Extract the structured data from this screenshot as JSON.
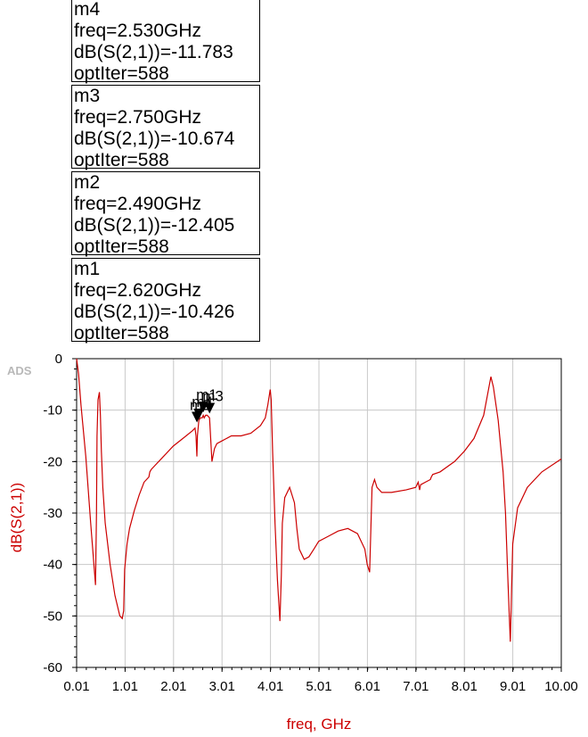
{
  "markers": [
    {
      "name": "m4",
      "freq": "freq=2.530GHz",
      "value": "dB(S(2,1))=-11.783",
      "iter": "optIter=588"
    },
    {
      "name": "m3",
      "freq": "freq=2.750GHz",
      "value": "dB(S(2,1))=-10.674",
      "iter": "optIter=588"
    },
    {
      "name": "m2",
      "freq": "freq=2.490GHz",
      "value": "dB(S(2,1))=-12.405",
      "iter": "optIter=588"
    },
    {
      "name": "m1",
      "freq": "freq=2.620GHz",
      "value": "dB(S(2,1))=-10.426",
      "iter": "optIter=588"
    }
  ],
  "chart_data": {
    "type": "line",
    "watermark": "ADS",
    "xlabel": "freq, GHz",
    "ylabel": "dB(S(2,1))",
    "xlim": [
      0.01,
      10.0
    ],
    "ylim": [
      -60,
      0
    ],
    "xticks": [
      "0.01",
      "1.01",
      "2.01",
      "3.01",
      "4.01",
      "5.01",
      "6.01",
      "7.01",
      "8.01",
      "9.01",
      "10.00"
    ],
    "yticks": [
      "0",
      "-10",
      "-20",
      "-30",
      "-40",
      "-50",
      "-60"
    ],
    "grid": true,
    "line_color": "#cc0000",
    "series": [
      {
        "x": [
          0.01,
          0.05,
          0.1,
          0.2,
          0.3,
          0.35,
          0.4,
          0.42,
          0.43,
          0.45,
          0.48,
          0.5,
          0.52,
          0.55,
          0.6,
          0.7,
          0.8,
          0.9,
          0.95,
          0.98,
          1.0,
          1.05,
          1.1,
          1.2,
          1.3,
          1.4,
          1.5,
          1.52,
          1.55,
          1.6,
          1.8,
          2.0,
          2.2,
          2.4,
          2.45,
          2.47,
          2.49,
          2.5,
          2.53,
          2.56,
          2.6,
          2.62,
          2.64,
          2.67,
          2.7,
          2.75,
          2.8,
          2.85,
          2.9,
          3.0,
          3.2,
          3.4,
          3.6,
          3.8,
          3.9,
          3.95,
          4.0,
          4.02,
          4.05,
          4.1,
          4.15,
          4.2,
          4.23,
          4.25,
          4.3,
          4.4,
          4.5,
          4.55,
          4.6,
          4.7,
          4.8,
          4.9,
          5.0,
          5.2,
          5.4,
          5.6,
          5.8,
          5.95,
          6.0,
          6.05,
          6.1,
          6.15,
          6.2,
          6.3,
          6.5,
          6.8,
          7.0,
          7.05,
          7.08,
          7.1,
          7.2,
          7.3,
          7.32,
          7.35,
          7.5,
          7.8,
          8.0,
          8.2,
          8.4,
          8.5,
          8.55,
          8.6,
          8.7,
          8.8,
          8.85,
          8.9,
          8.95,
          9.0,
          9.1,
          9.3,
          9.6,
          10.0
        ],
        "y": [
          0.0,
          -3.0,
          -9.0,
          -19.0,
          -32.0,
          -38.0,
          -44.0,
          -30.0,
          -15.0,
          -8.0,
          -6.5,
          -11.0,
          -18.0,
          -25.0,
          -32.0,
          -40.0,
          -46.0,
          -50.0,
          -50.5,
          -49.0,
          -41.0,
          -36.0,
          -33.0,
          -29.5,
          -26.5,
          -24.0,
          -23.0,
          -22.0,
          -21.5,
          -21.0,
          -19.0,
          -17.0,
          -15.5,
          -14.0,
          -13.5,
          -15.0,
          -19.0,
          -15.0,
          -12.0,
          -11.5,
          -11.5,
          -11.0,
          -11.5,
          -11.0,
          -11.0,
          -11.5,
          -20.0,
          -17.5,
          -16.5,
          -16.0,
          -15.0,
          -15.0,
          -14.5,
          -13.0,
          -11.5,
          -9.0,
          -6.0,
          -8.0,
          -18.0,
          -32.0,
          -43.0,
          -51.0,
          -42.0,
          -32.0,
          -27.0,
          -25.0,
          -28.0,
          -33.0,
          -37.0,
          -39.0,
          -38.5,
          -37.0,
          -35.5,
          -34.5,
          -33.5,
          -33.0,
          -34.0,
          -37.0,
          -40.0,
          -41.5,
          -25.0,
          -23.5,
          -25.0,
          -26.0,
          -26.0,
          -25.5,
          -25.0,
          -24.0,
          -25.5,
          -24.5,
          -24.0,
          -23.5,
          -23.0,
          -22.5,
          -22.0,
          -20.0,
          -18.0,
          -15.5,
          -11.0,
          -6.0,
          -3.5,
          -5.5,
          -12.0,
          -22.0,
          -30.0,
          -43.0,
          -55.0,
          -36.0,
          -29.0,
          -25.0,
          -22.0,
          -19.5
        ]
      }
    ],
    "marker_points": [
      {
        "label": "m1",
        "x": 2.62,
        "y": -10.426
      },
      {
        "label": "m2",
        "x": 2.49,
        "y": -12.405
      },
      {
        "label": "m3",
        "x": 2.75,
        "y": -10.674
      },
      {
        "label": "m4",
        "x": 2.53,
        "y": -11.783
      }
    ]
  }
}
